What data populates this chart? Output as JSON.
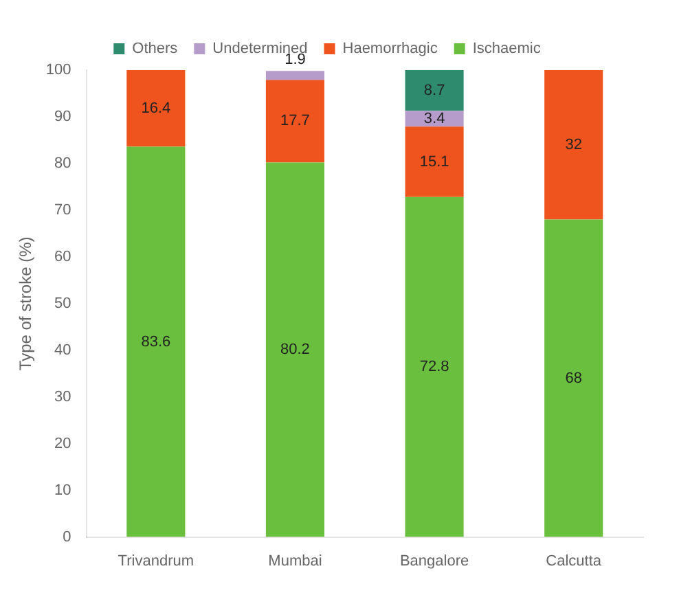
{
  "chart_data": {
    "type": "bar",
    "stacked": true,
    "ylabel": "Type of stroke (%)",
    "categories": [
      "Trivandrum",
      "Mumbai",
      "Bangalore",
      "Calcutta"
    ],
    "series": [
      {
        "name": "Ischaemic",
        "color": "#6abf3f",
        "values": [
          83.6,
          80.2,
          72.8,
          68
        ]
      },
      {
        "name": "Haemorrhagic",
        "color": "#f0541e",
        "values": [
          16.4,
          17.7,
          15.1,
          32
        ]
      },
      {
        "name": "Undetermined",
        "color": "#b59ccb",
        "values": [
          null,
          1.9,
          3.4,
          null
        ]
      },
      {
        "name": "Others",
        "color": "#2e8b6e",
        "values": [
          null,
          null,
          8.7,
          null
        ]
      }
    ],
    "ylim": [
      0,
      100
    ],
    "yticks": [
      0,
      10,
      20,
      30,
      40,
      50,
      60,
      70,
      80,
      90,
      100
    ],
    "grid": false,
    "legend": "top",
    "data_labels": true
  }
}
